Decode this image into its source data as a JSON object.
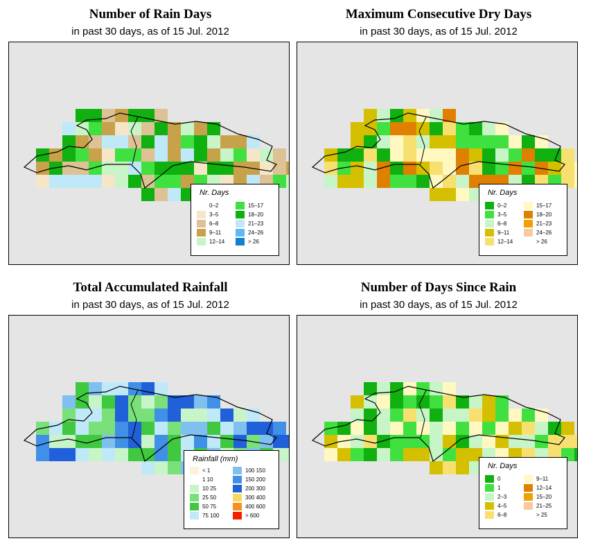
{
  "panels": [
    {
      "id": "rain-days",
      "title": "Number of Rain Days",
      "subtitle": "in past 30 days, as of  15 Jul. 2012",
      "legend": {
        "title": "Nr. Days",
        "columns": [
          [
            {
              "label": "0–2",
              "color": "#ffffff"
            },
            {
              "label": "3–5",
              "color": "#f5e6c8"
            },
            {
              "label": "6–8",
              "color": "#dcc294"
            },
            {
              "label": "9–11",
              "color": "#c8a24a"
            },
            {
              "label": "12–14",
              "color": "#c8f5c8"
            }
          ],
          [
            {
              "label": "15–17",
              "color": "#40e040"
            },
            {
              "label": "18–20",
              "color": "#10b010"
            },
            {
              "label": "21–23",
              "color": "#bfe8f8"
            },
            {
              "label": "24–26",
              "color": "#60b8f0"
            },
            {
              "label": "> 26",
              "color": "#1080d0"
            }
          ]
        ]
      }
    },
    {
      "id": "max-dry-days",
      "title": "Maximum Consecutive Dry Days",
      "subtitle": "in past 30 days, as of  15 Jul. 2012",
      "legend": {
        "title": "Nr. Days",
        "columns": [
          [
            {
              "label": "0–2",
              "color": "#10b010"
            },
            {
              "label": "3–5",
              "color": "#40e040"
            },
            {
              "label": "6–8",
              "color": "#c8f5c8"
            },
            {
              "label": "9–11",
              "color": "#d4c000"
            },
            {
              "label": "12–14",
              "color": "#f8e070"
            }
          ],
          [
            {
              "label": "15–17",
              "color": "#fff8c0"
            },
            {
              "label": "18–20",
              "color": "#e08000"
            },
            {
              "label": "21–23",
              "color": "#f0a000"
            },
            {
              "label": "24–26",
              "color": "#f8c8a0"
            },
            {
              "label": "> 26",
              "color": "#ffffff"
            }
          ]
        ]
      }
    },
    {
      "id": "total-rainfall",
      "title": "Total Accumulated Rainfall",
      "subtitle": "in past 30 days, as of  15 Jul. 2012",
      "legend": {
        "title": "Rainfall (mm)",
        "columns": [
          [
            {
              "label": "< 1",
              "color": "#fff0dc"
            },
            {
              "label": "1  10",
              "color": "#ffffff"
            },
            {
              "label": "10  25",
              "color": "#c8f5c8"
            },
            {
              "label": "25  50",
              "color": "#7ae07a"
            },
            {
              "label": "50  75",
              "color": "#40c840"
            },
            {
              "label": "75  100",
              "color": "#bfe8f8"
            }
          ],
          [
            {
              "label": "100  150",
              "color": "#80c0f0"
            },
            {
              "label": "150  200",
              "color": "#4090e8"
            },
            {
              "label": "200  300",
              "color": "#2060d8"
            },
            {
              "label": "300  400",
              "color": "#f8d860"
            },
            {
              "label": "400  600",
              "color": "#f89020"
            },
            {
              "label": "> 600",
              "color": "#f02000"
            }
          ]
        ]
      }
    },
    {
      "id": "days-since-rain",
      "title": "Number of Days Since Rain",
      "subtitle": "in past 30 days, as of  15 Jul. 2012",
      "legend": {
        "title": "Nr. Days",
        "columns": [
          [
            {
              "label": "0",
              "color": "#10b010"
            },
            {
              "label": "1",
              "color": "#40e040"
            },
            {
              "label": "2–3",
              "color": "#c8f5c8"
            },
            {
              "label": "4–5",
              "color": "#d4c000"
            },
            {
              "label": "6–8",
              "color": "#f8e070"
            }
          ],
          [
            {
              "label": "9–11",
              "color": "#fff8c0"
            },
            {
              "label": "12–14",
              "color": "#e08000"
            },
            {
              "label": "15–20",
              "color": "#f0a000"
            },
            {
              "label": "21–25",
              "color": "#f8c8a0"
            },
            {
              "label": "> 25",
              "color": "#ffffff"
            }
          ]
        ]
      }
    }
  ]
}
